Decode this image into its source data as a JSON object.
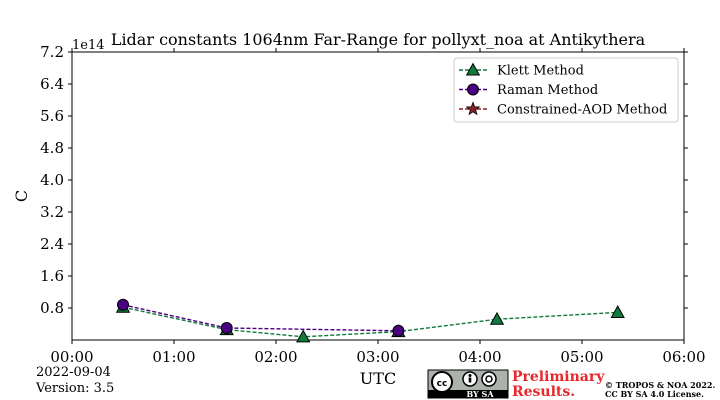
{
  "chart_data": {
    "type": "line",
    "title": "Lidar constants 1064nm Far-Range for pollyxt_noa at Antikythera",
    "xlabel": "UTC",
    "ylabel": "C",
    "y_offset_text": "1e14",
    "xlim": [
      "00:00",
      "06:00"
    ],
    "ylim": [
      0,
      7.2
    ],
    "x_ticks": [
      "00:00",
      "01:00",
      "02:00",
      "03:00",
      "04:00",
      "05:00",
      "06:00"
    ],
    "y_ticks": [
      "0.8",
      "1.6",
      "2.4",
      "3.2",
      "4.0",
      "4.8",
      "5.6",
      "6.4",
      "7.2"
    ],
    "legend_position": "top-right",
    "series": [
      {
        "name": "Klett Method",
        "color": "#117a3c",
        "marker": "triangle",
        "linestyle": "dashed",
        "points": [
          {
            "x": "00:30",
            "y": 0.82
          },
          {
            "x": "01:31",
            "y": 0.26
          },
          {
            "x": "02:16",
            "y": 0.08
          },
          {
            "x": "03:12",
            "y": 0.21
          },
          {
            "x": "04:10",
            "y": 0.52
          },
          {
            "x": "05:21",
            "y": 0.69
          }
        ]
      },
      {
        "name": "Raman Method",
        "color": "#4b0082",
        "marker": "circle",
        "linestyle": "dashed",
        "points": [
          {
            "x": "00:30",
            "y": 0.88
          },
          {
            "x": "01:31",
            "y": 0.3
          },
          {
            "x": "03:12",
            "y": 0.23
          }
        ]
      },
      {
        "name": "Constrained-AOD Method",
        "color": "#8b2323",
        "marker": "star",
        "linestyle": "dashed",
        "points": []
      }
    ]
  },
  "footer": {
    "date": "2022-09-04",
    "version": "Version: 3.5",
    "preliminary_line1": "Preliminary",
    "preliminary_line2": "Results.",
    "copyright_line1": "© TROPOS & NOA 2022.",
    "copyright_line2": "CC BY SA 4.0 License.",
    "license_badge_text": "BY SA",
    "preliminary_color": "#e8262b"
  }
}
